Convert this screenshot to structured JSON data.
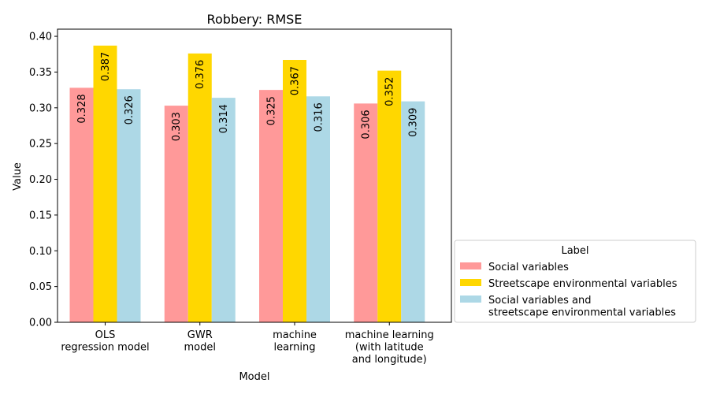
{
  "chart_data": {
    "type": "bar",
    "title": "Robbery: RMSE",
    "xlabel": "Model",
    "ylabel": "Value",
    "ylim": [
      0,
      0.41
    ],
    "yticks": [
      "0.00",
      "0.05",
      "0.10",
      "0.15",
      "0.20",
      "0.25",
      "0.30",
      "0.35",
      "0.40"
    ],
    "categories": [
      [
        "OLS",
        "regression model"
      ],
      [
        "GWR",
        "model"
      ],
      [
        "machine",
        "learning"
      ],
      [
        "machine learning",
        "(with latitude",
        "and longitude)"
      ]
    ],
    "series": [
      {
        "name": [
          "Social variables"
        ],
        "color": "#ff9999",
        "values": [
          0.328,
          0.303,
          0.325,
          0.306
        ]
      },
      {
        "name": [
          "Streetscape environmental variables"
        ],
        "color": "#ffd700",
        "values": [
          0.387,
          0.376,
          0.367,
          0.352
        ]
      },
      {
        "name": [
          "Social variables and",
          "streetscape environmental variables"
        ],
        "color": "#add8e6",
        "values": [
          0.326,
          0.314,
          0.316,
          0.309
        ]
      }
    ],
    "legend": {
      "title": "Label",
      "placement": "outside-lower-right"
    },
    "grid": false
  }
}
